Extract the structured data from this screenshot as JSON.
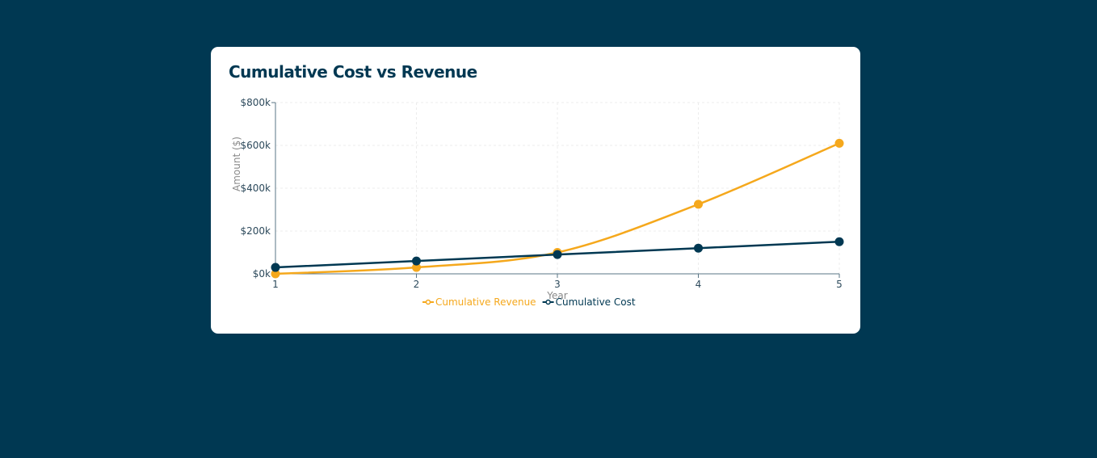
{
  "chart_data": {
    "type": "line",
    "title": "Cumulative Cost vs Revenue",
    "xlabel": "Year",
    "ylabel": "Amount ($)",
    "x": [
      1,
      2,
      3,
      4,
      5
    ],
    "x_ticks": [
      "1",
      "2",
      "3",
      "4",
      "5"
    ],
    "ylim": [
      0,
      800000
    ],
    "y_ticks": [
      0,
      200000,
      400000,
      600000,
      800000
    ],
    "y_tick_labels": [
      "$0k",
      "$200k",
      "$400k",
      "$600k",
      "$800k"
    ],
    "grid": true,
    "legend": "bottom",
    "series": [
      {
        "name": "Cumulative Revenue",
        "color": "#f5a81c",
        "values": [
          0,
          30000,
          100000,
          325000,
          610000
        ],
        "smooth": true
      },
      {
        "name": "Cumulative Cost",
        "color": "#003852",
        "values": [
          30000,
          60000,
          90000,
          120000,
          150000
        ],
        "smooth": false
      }
    ]
  },
  "colors": {
    "background": "#003852",
    "card": "#ffffff"
  }
}
